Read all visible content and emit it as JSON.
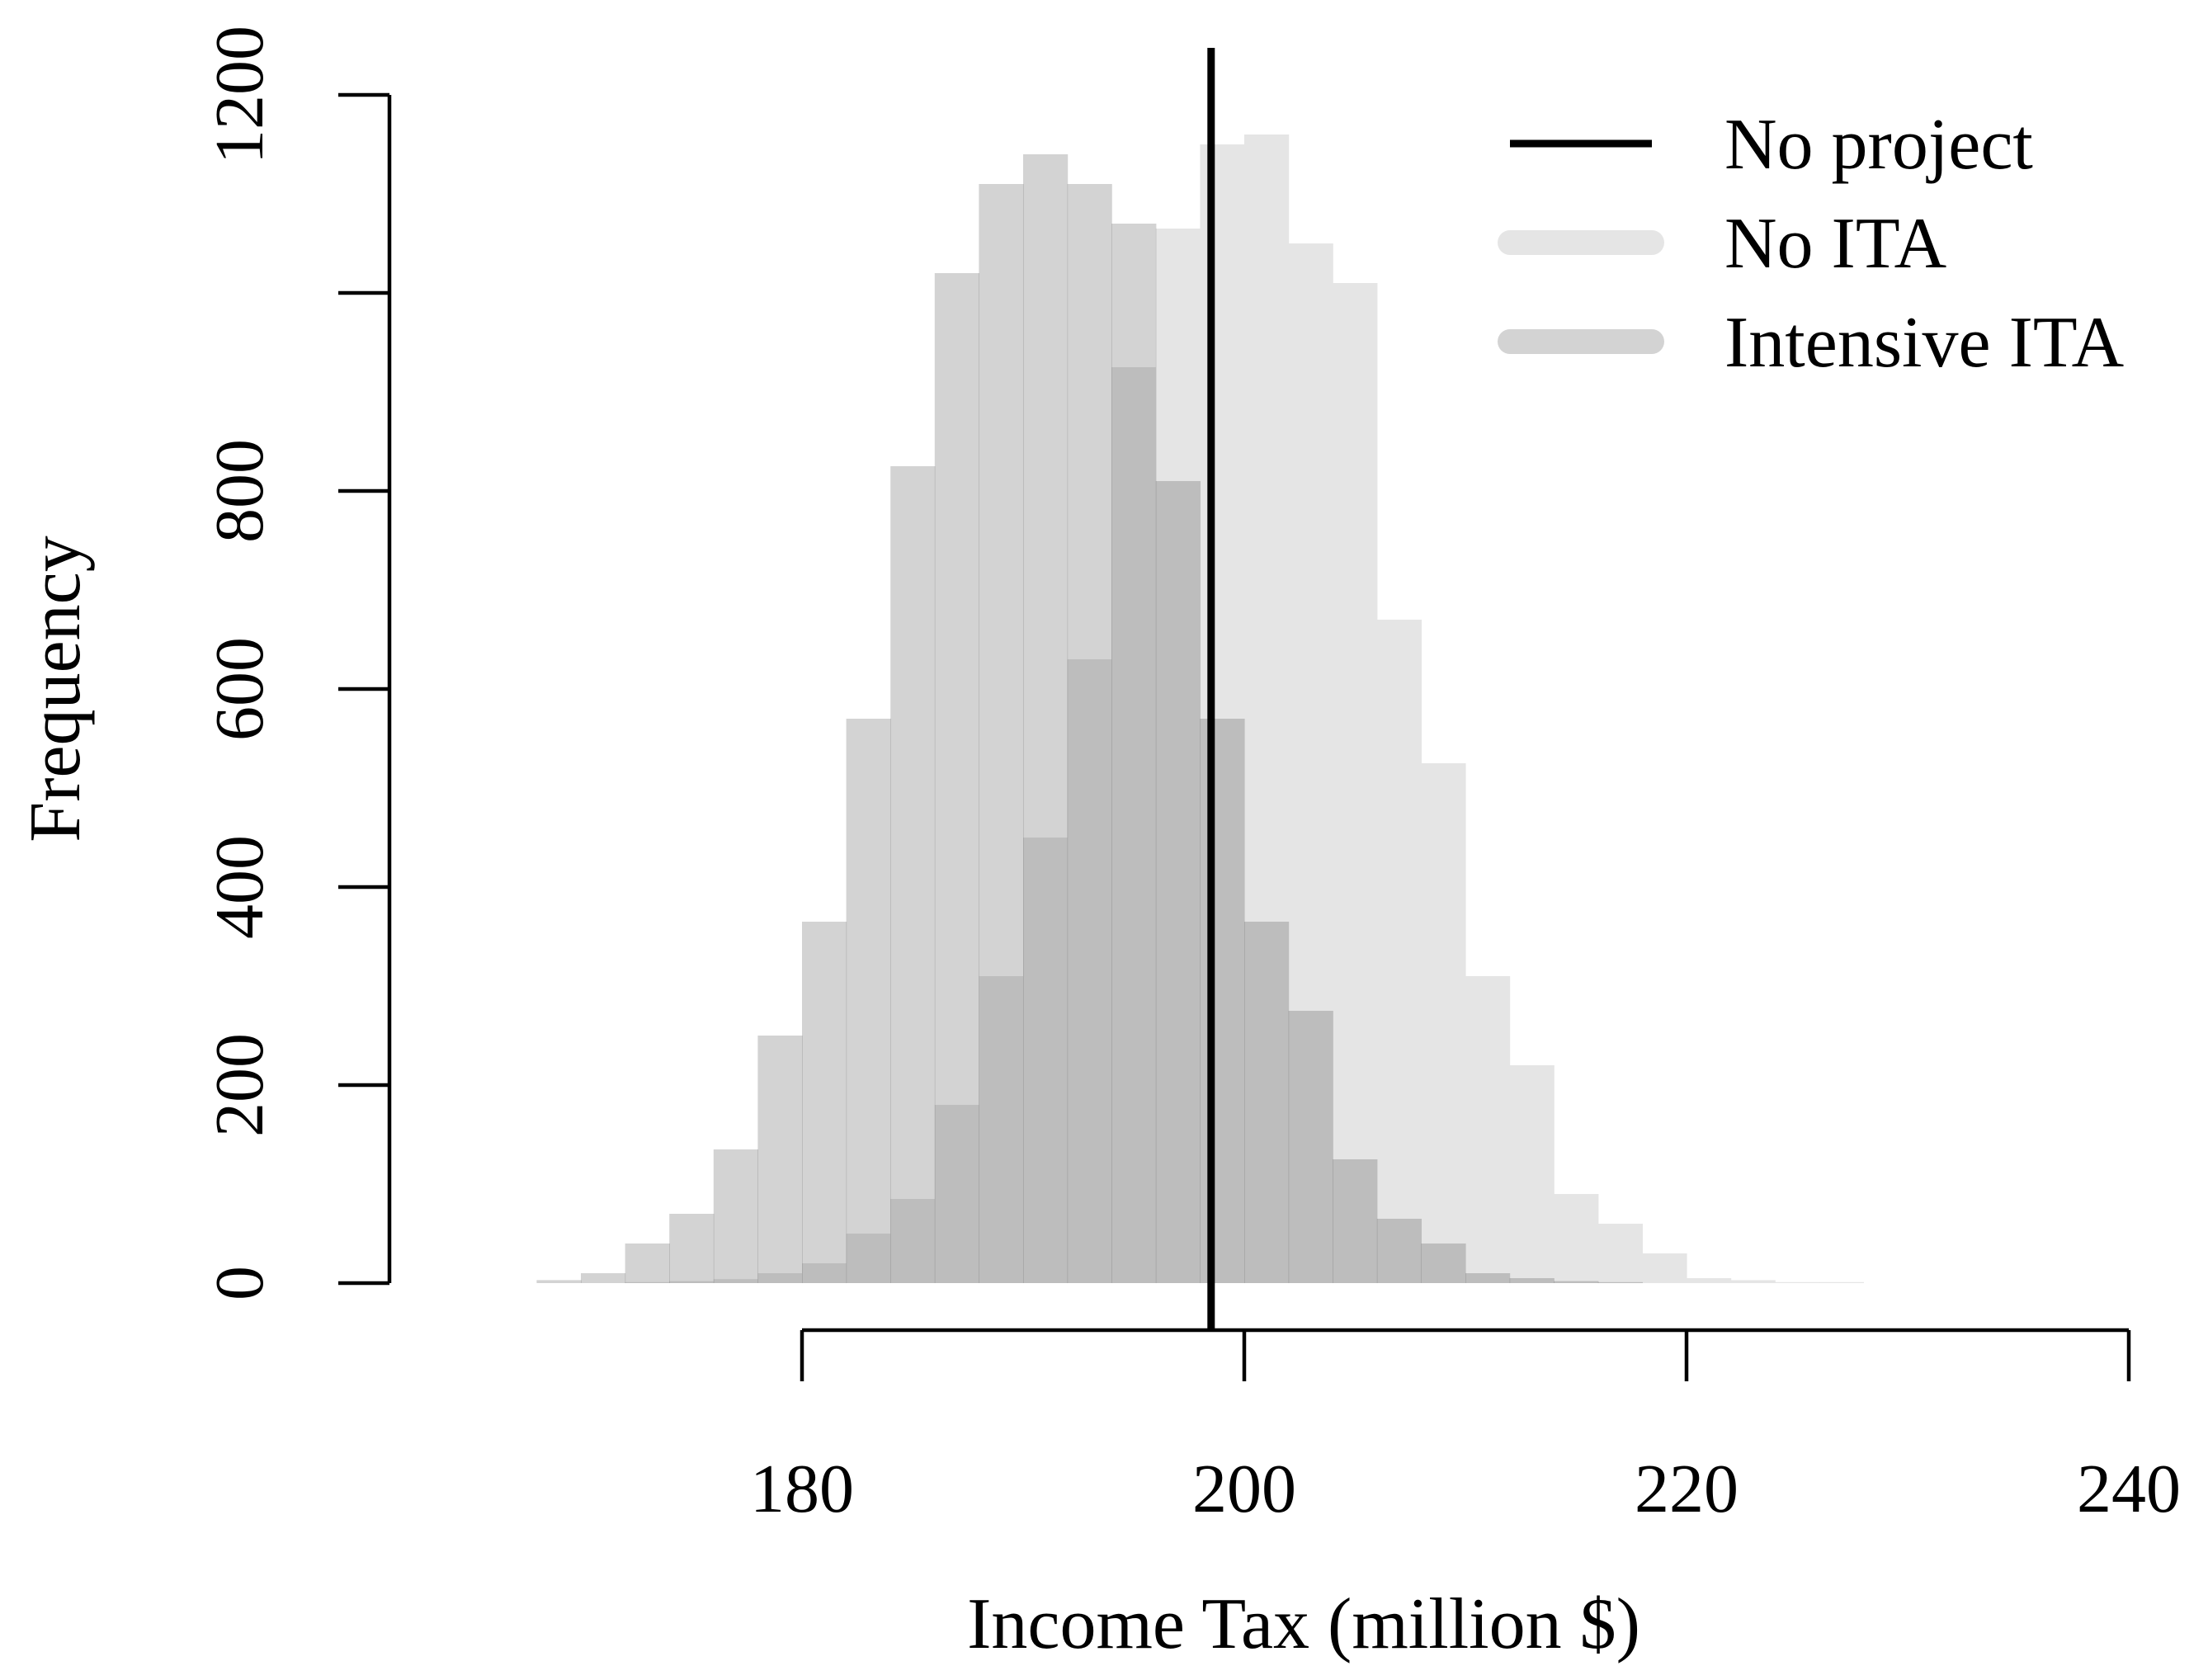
{
  "chart_data": {
    "type": "bar",
    "subtype": "overlapping-histogram",
    "xlabel": "Income Tax (million $)",
    "ylabel": "Frequency",
    "xlim": [
      180,
      240
    ],
    "ylim": [
      0,
      1200
    ],
    "x_ticks": [
      "180",
      "200",
      "220",
      "240"
    ],
    "y_ticks": [
      "0",
      "200",
      "400",
      "600",
      "800",
      "1200"
    ],
    "grid": false,
    "legend_position": "top-right",
    "bin_width": 2,
    "reference_line": {
      "name": "No project",
      "x": 198.5,
      "color": "#000000"
    },
    "series": [
      {
        "name": "No ITA",
        "color": "#e5e5e5",
        "bin_start": 170,
        "values": [
          0,
          1,
          2,
          4,
          10,
          20,
          50,
          85,
          180,
          310,
          450,
          630,
          925,
          1065,
          1150,
          1160,
          1050,
          1010,
          670,
          525,
          310,
          220,
          90,
          60,
          30,
          5,
          3,
          1,
          1,
          0
        ]
      },
      {
        "name": "Intensive ITA",
        "color": "#d3d3d3",
        "bin_start": 166,
        "values": [
          0,
          3,
          10,
          40,
          70,
          135,
          250,
          365,
          570,
          825,
          1020,
          1110,
          1140,
          1110,
          1070,
          810,
          570,
          365,
          275,
          125,
          65,
          40,
          10,
          5,
          2,
          1,
          0
        ]
      }
    ]
  }
}
